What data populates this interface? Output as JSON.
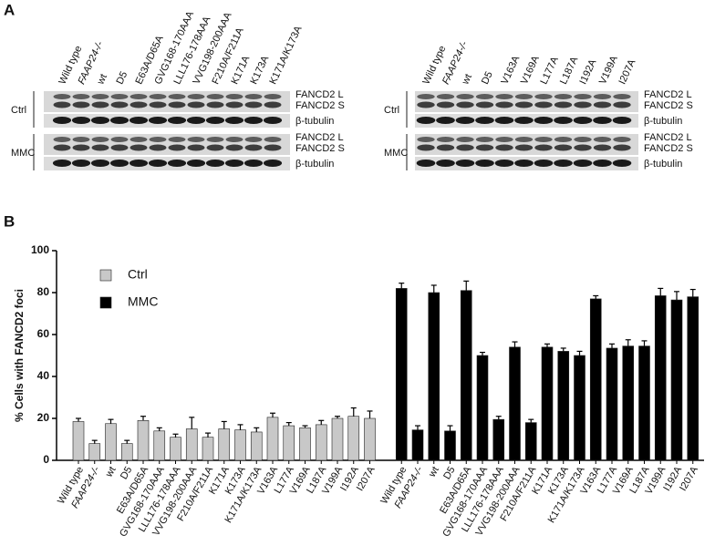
{
  "panel_a": {
    "label": "A",
    "left": {
      "lanes": [
        "Wild type",
        "FAAP24-/-",
        "wt",
        "D5",
        "E63A/D65A",
        "GVG168-170AAA",
        "LLL176-178AAA",
        "VVG198-200AAA",
        "F210A/F211A",
        "K171A",
        "K173A",
        "K171A/K173A"
      ],
      "blots": [
        {
          "condition": "Ctrl",
          "labels": [
            "FANCD2 L",
            "FANCD2 S",
            "β-tubulin"
          ]
        },
        {
          "condition": "MMC",
          "labels": [
            "FANCD2 L",
            "FANCD2 S",
            "β-tubulin"
          ]
        }
      ]
    },
    "right": {
      "lanes": [
        "Wild type",
        "FAAP24-/-",
        "wt",
        "D5",
        "V163A",
        "V169A",
        "L177A",
        "L187A",
        "I192A",
        "V199A",
        "I207A"
      ],
      "blots": [
        {
          "condition": "Ctrl",
          "labels": [
            "FANCD2 L",
            "FANCD2 S",
            "β-tubulin"
          ]
        },
        {
          "condition": "MMC",
          "labels": [
            "FANCD2 L",
            "FANCD2 S",
            "β-tubulin"
          ]
        }
      ]
    }
  },
  "chart_data": {
    "type": "bar",
    "panel_label": "B",
    "y_label": "% Cells with FANCD2 foci",
    "categories": [
      "Wild type",
      "FAAP24-/-",
      "wt",
      "D5",
      "E63A/D65A",
      "GVG168-170AAA",
      "LLL176-178AAA",
      "VVG198-200AAA",
      "F210A/F211A",
      "K171A",
      "K173A",
      "K171A/K173A",
      "V163A",
      "L177A",
      "V169A",
      "L187A",
      "V199A",
      "I192A",
      "I207A",
      "Wild type",
      "FAAP24-/-",
      "wt",
      "D5",
      "E63A/D65A",
      "GVG168-170AAA",
      "LLL176-178AAA",
      "VVG198-200AAA",
      "F210A/F211A",
      "K171A",
      "K173A",
      "K171A/K173A",
      "V163A",
      "L177A",
      "V169A",
      "L187A",
      "V199A",
      "I192A",
      "I207A"
    ],
    "series": [
      {
        "name": "Ctrl",
        "color": "#c8c8c8",
        "values": [
          18.5,
          8,
          17.5,
          8,
          19,
          14,
          11,
          15,
          11,
          15,
          14.5,
          13.5,
          20.5,
          16.5,
          15.5,
          17,
          20,
          21,
          20,
          null,
          null,
          null,
          null,
          null,
          null,
          null,
          null,
          null,
          null,
          null,
          null,
          null,
          null,
          null,
          null,
          null,
          null,
          null
        ],
        "errors": [
          1.5,
          1.5,
          2,
          1.5,
          2,
          1.5,
          1.5,
          5.5,
          2,
          3.5,
          2.5,
          2,
          2,
          1.5,
          1,
          2,
          1,
          4,
          3.5,
          null,
          null,
          null,
          null,
          null,
          null,
          null,
          null,
          null,
          null,
          null,
          null,
          null,
          null,
          null,
          null,
          null,
          null,
          null
        ]
      },
      {
        "name": "MMC",
        "color": "#000000",
        "values": [
          null,
          null,
          null,
          null,
          null,
          null,
          null,
          null,
          null,
          null,
          null,
          null,
          null,
          null,
          null,
          null,
          null,
          null,
          null,
          82,
          14.5,
          80,
          14,
          81,
          50,
          19.5,
          54,
          18,
          54,
          52,
          50,
          77,
          53.5,
          54.5,
          54.5,
          78.5,
          76.5,
          78
        ],
        "errors": [
          null,
          null,
          null,
          null,
          null,
          null,
          null,
          null,
          null,
          null,
          null,
          null,
          null,
          null,
          null,
          null,
          null,
          null,
          null,
          2.5,
          2,
          3.5,
          2.5,
          4.5,
          1.5,
          1.5,
          2.5,
          1.5,
          1.5,
          1.5,
          2,
          1.5,
          2,
          3,
          2.5,
          3.5,
          4,
          3.5
        ]
      }
    ],
    "ylim": [
      0,
      100
    ],
    "yticks": [
      0,
      20,
      40,
      60,
      80,
      100
    ]
  }
}
